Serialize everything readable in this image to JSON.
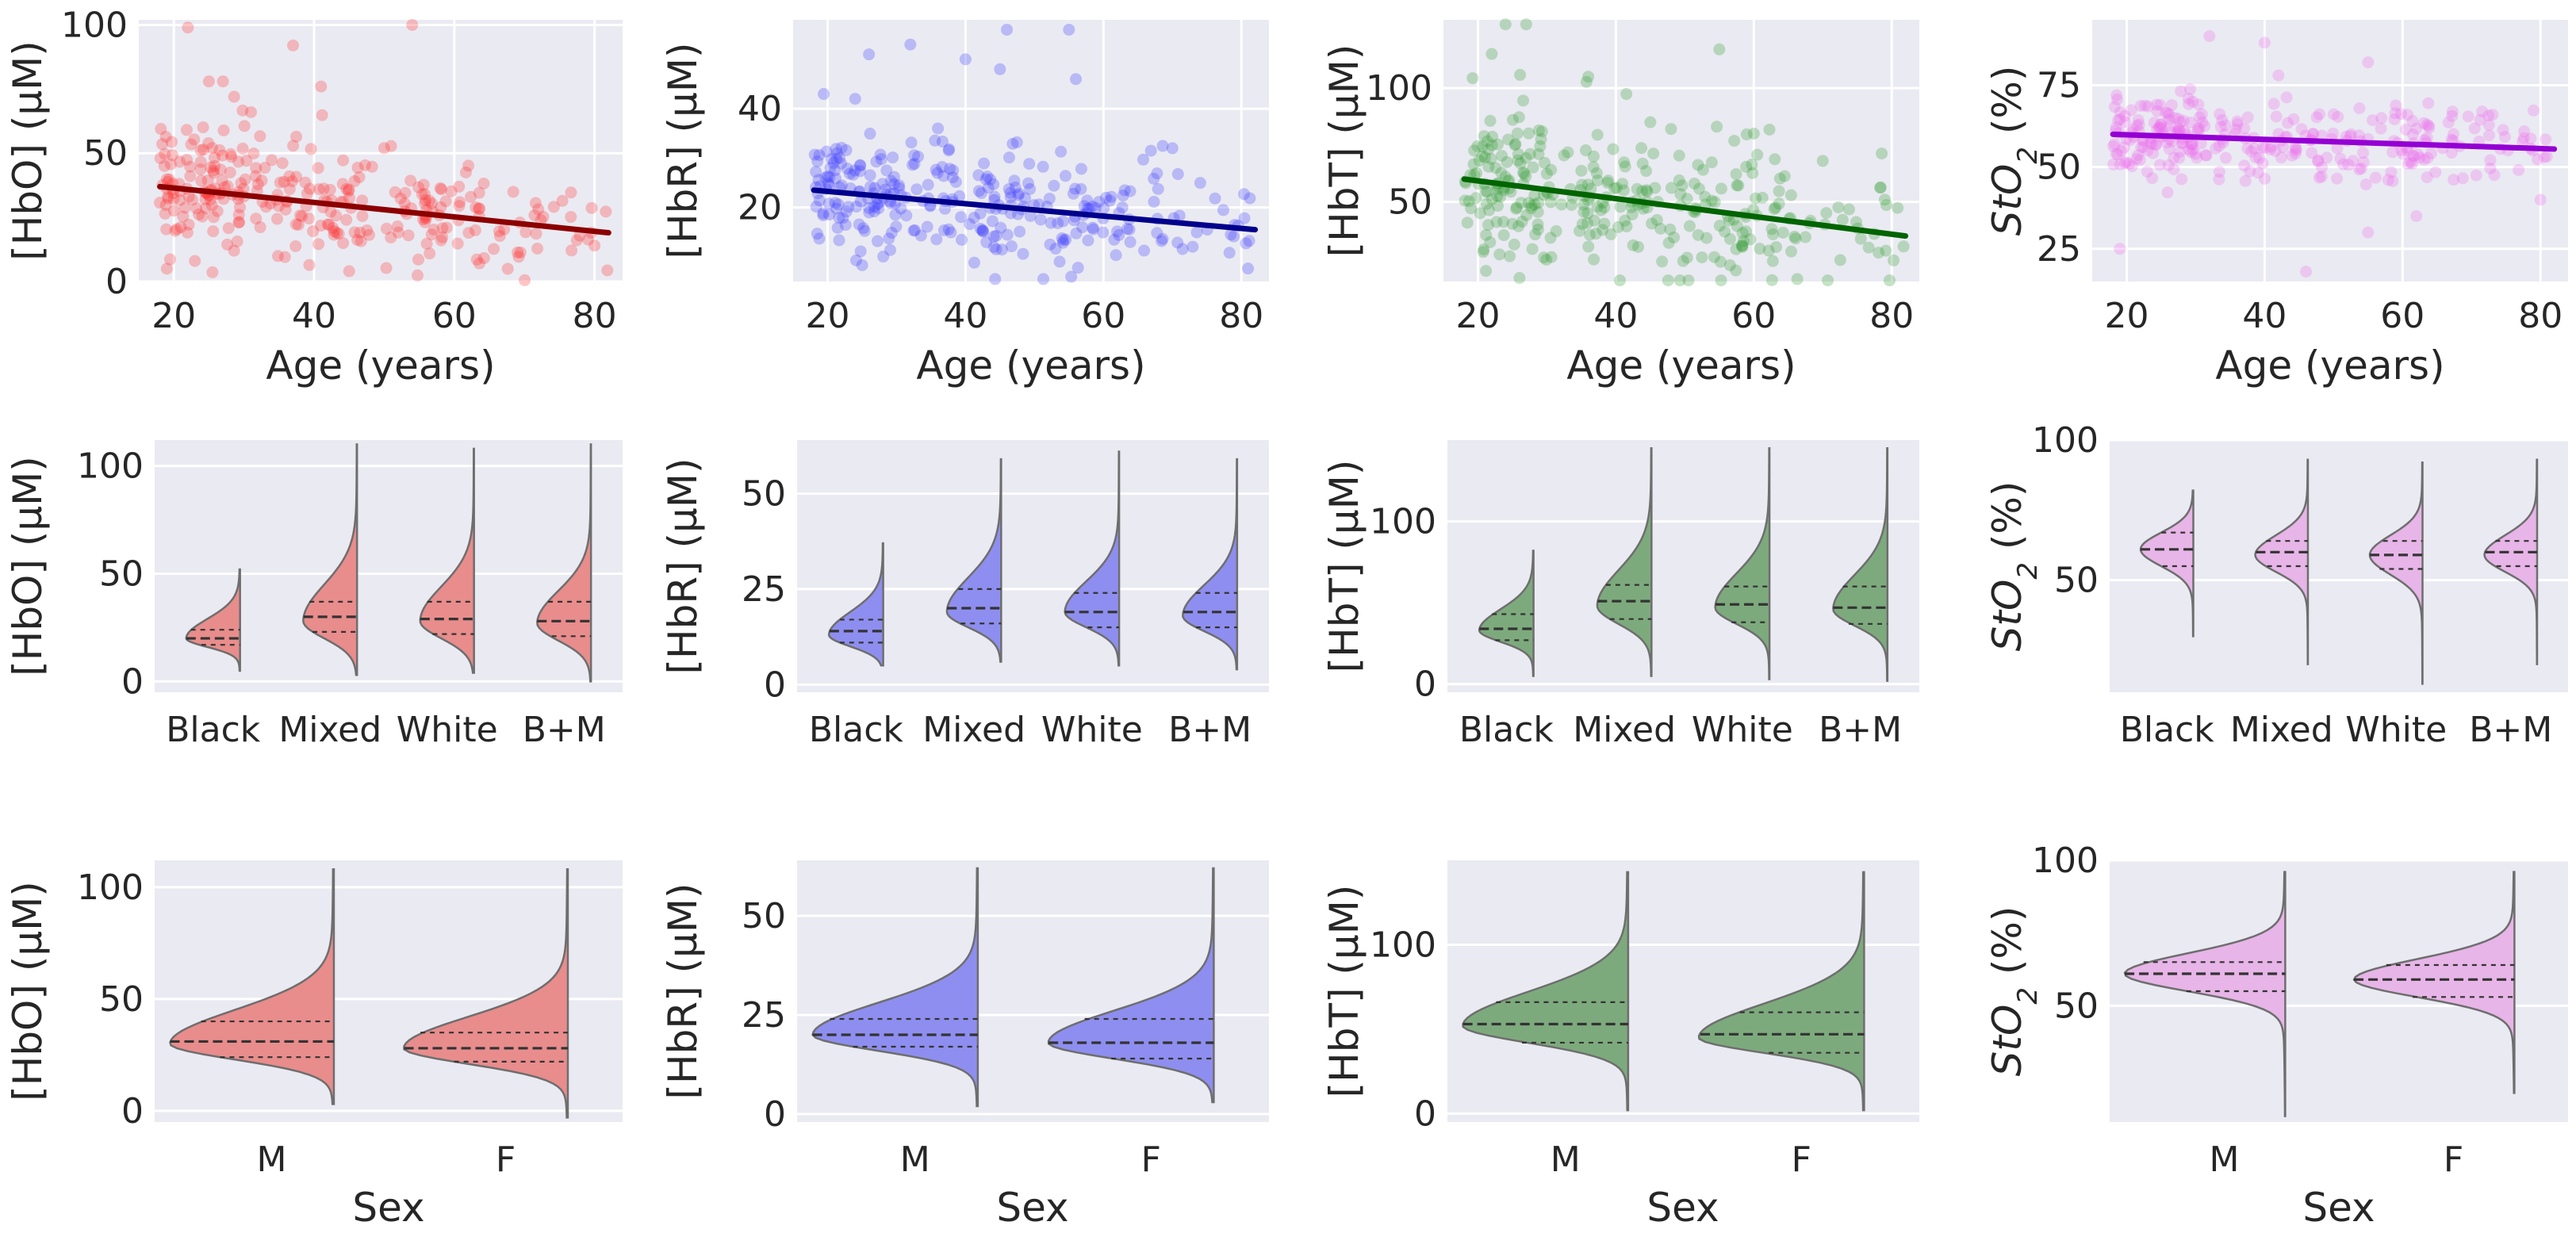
{
  "chart_data": [
    {
      "id": "hbo-age",
      "type": "scatter",
      "xlabel": "Age (years)",
      "ylabel": "[HbO] (μM)",
      "xlim": [
        15,
        84
      ],
      "ylim": [
        0,
        102
      ],
      "xticks": [
        20,
        40,
        60,
        80
      ],
      "yticks": [
        0,
        50,
        100
      ],
      "point_color": "#ff3030",
      "line_color": "#8b0000",
      "seed": 11,
      "n_points": 300,
      "spread": 11,
      "trend": {
        "x": [
          18,
          82
        ],
        "y": [
          37,
          19
        ]
      },
      "outliers": [
        [
          22,
          99
        ],
        [
          54,
          100
        ],
        [
          37,
          92
        ],
        [
          41,
          76
        ],
        [
          25,
          78
        ],
        [
          27,
          78
        ],
        [
          31,
          66
        ],
        [
          50,
          52
        ],
        [
          19,
          5
        ],
        [
          23,
          8
        ],
        [
          45,
          4
        ],
        [
          80,
          14
        ]
      ]
    },
    {
      "id": "hbr-age",
      "type": "scatter",
      "xlabel": "Age (years)",
      "ylabel": "[HbR] (μM)",
      "xlim": [
        15,
        84
      ],
      "ylim": [
        5,
        58
      ],
      "xticks": [
        20,
        40,
        60,
        80
      ],
      "yticks": [
        20,
        40
      ],
      "point_color": "#3a3aff",
      "line_color": "#00008b",
      "seed": 23,
      "n_points": 300,
      "spread": 6,
      "trend": {
        "x": [
          18,
          82
        ],
        "y": [
          23.5,
          15.5
        ]
      },
      "outliers": [
        [
          46,
          56
        ],
        [
          55,
          56
        ],
        [
          32,
          53
        ],
        [
          26,
          51
        ],
        [
          40,
          50
        ],
        [
          56,
          46
        ],
        [
          45,
          48
        ],
        [
          24,
          42
        ],
        [
          70,
          32
        ],
        [
          36,
          36
        ]
      ]
    },
    {
      "id": "hbt-age",
      "type": "scatter",
      "xlabel": "Age (years)",
      "ylabel": "[HbT] (μM)",
      "xlim": [
        15,
        84
      ],
      "ylim": [
        15,
        130
      ],
      "xticks": [
        20,
        40,
        60,
        80
      ],
      "yticks": [
        50,
        100
      ],
      "point_color": "#2e9a2e",
      "line_color": "#006400",
      "seed": 37,
      "n_points": 320,
      "spread": 16,
      "trend": {
        "x": [
          18,
          82
        ],
        "y": [
          60,
          35
        ]
      },
      "outliers": [
        [
          24,
          128
        ],
        [
          27,
          128
        ],
        [
          22,
          115
        ],
        [
          36,
          105
        ],
        [
          55,
          117
        ],
        [
          45,
          85
        ],
        [
          48,
          82
        ],
        [
          60,
          80
        ],
        [
          70,
          68
        ]
      ]
    },
    {
      "id": "sto2-age",
      "type": "scatter",
      "xlabel": "Age (years)",
      "ylabel": "StO2 (%)",
      "xlim": [
        15,
        84
      ],
      "ylim": [
        15,
        95
      ],
      "xticks": [
        20,
        40,
        60,
        80
      ],
      "yticks": [
        25,
        50,
        75
      ],
      "point_color": "#ee6aee",
      "line_color": "#9400d3",
      "seed": 53,
      "n_points": 300,
      "spread": 6,
      "trend": {
        "x": [
          18,
          82
        ],
        "y": [
          60,
          55.5
        ]
      },
      "outliers": [
        [
          32,
          90
        ],
        [
          40,
          88
        ],
        [
          42,
          78
        ],
        [
          55,
          82
        ],
        [
          19,
          25
        ],
        [
          46,
          18
        ],
        [
          55,
          30
        ],
        [
          62,
          35
        ],
        [
          80,
          40
        ]
      ]
    },
    {
      "id": "hbo-ethnicity",
      "type": "violin",
      "ylabel": "[HbO] (μM)",
      "ylim": [
        -5,
        112
      ],
      "yticks": [
        0,
        50,
        100
      ],
      "categories": [
        "Black",
        "Mixed",
        "White",
        "B+M"
      ],
      "fill": "#e98c8c",
      "violins": [
        {
          "min": 5,
          "max": 52,
          "mode": 20,
          "sd_low": 4,
          "sd_high": 9,
          "q1": 17,
          "median": 20,
          "q3": 24
        },
        {
          "min": 3,
          "max": 110,
          "mode": 28,
          "sd_low": 8,
          "sd_high": 17,
          "q1": 23,
          "median": 30,
          "q3": 37
        },
        {
          "min": 4,
          "max": 108,
          "mode": 28,
          "sd_low": 8,
          "sd_high": 16,
          "q1": 22,
          "median": 29,
          "q3": 37
        },
        {
          "min": 0,
          "max": 110,
          "mode": 27,
          "sd_low": 8,
          "sd_high": 15,
          "q1": 21,
          "median": 28,
          "q3": 37
        }
      ]
    },
    {
      "id": "hbr-ethnicity",
      "type": "violin",
      "ylabel": "[HbR] (μM)",
      "ylim": [
        -2,
        64
      ],
      "yticks": [
        0,
        25,
        50
      ],
      "categories": [
        "Black",
        "Mixed",
        "White",
        "B+M"
      ],
      "fill": "#8e8ef0",
      "violins": [
        {
          "min": 5,
          "max": 37,
          "mode": 13,
          "sd_low": 3,
          "sd_high": 6,
          "q1": 11,
          "median": 14,
          "q3": 17
        },
        {
          "min": 6,
          "max": 59,
          "mode": 19,
          "sd_low": 4,
          "sd_high": 9,
          "q1": 16,
          "median": 20,
          "q3": 25
        },
        {
          "min": 5,
          "max": 61,
          "mode": 19,
          "sd_low": 4,
          "sd_high": 8,
          "q1": 15,
          "median": 19,
          "q3": 24
        },
        {
          "min": 4,
          "max": 59,
          "mode": 18,
          "sd_low": 4,
          "sd_high": 8,
          "q1": 15,
          "median": 19,
          "q3": 24
        }
      ]
    },
    {
      "id": "hbt-ethnicity",
      "type": "violin",
      "ylabel": "[HbT] (μM)",
      "ylim": [
        -5,
        150
      ],
      "yticks": [
        0,
        100
      ],
      "categories": [
        "Black",
        "Mixed",
        "White",
        "B+M"
      ],
      "fill": "#7daa7d",
      "violins": [
        {
          "min": 5,
          "max": 82,
          "mode": 33,
          "sd_low": 7,
          "sd_high": 13,
          "q1": 27,
          "median": 34,
          "q3": 43
        },
        {
          "min": 5,
          "max": 145,
          "mode": 48,
          "sd_low": 11,
          "sd_high": 22,
          "q1": 40,
          "median": 51,
          "q3": 61
        },
        {
          "min": 3,
          "max": 145,
          "mode": 47,
          "sd_low": 10,
          "sd_high": 21,
          "q1": 38,
          "median": 49,
          "q3": 60
        },
        {
          "min": 2,
          "max": 145,
          "mode": 46,
          "sd_low": 10,
          "sd_high": 21,
          "q1": 37,
          "median": 47,
          "q3": 60
        }
      ]
    },
    {
      "id": "sto2-ethnicity",
      "type": "violin",
      "ylabel": "StO2 (%)",
      "ylim": [
        10,
        100
      ],
      "yticks": [
        50,
        100
      ],
      "categories": [
        "Black",
        "Mixed",
        "White",
        "B+M"
      ],
      "fill": "#e7b5e7",
      "violins": [
        {
          "min": 30,
          "max": 82,
          "mode": 61,
          "sd_low": 6,
          "sd_high": 6,
          "q1": 55,
          "median": 61,
          "q3": 67
        },
        {
          "min": 20,
          "max": 93,
          "mode": 59,
          "sd_low": 6,
          "sd_high": 7,
          "q1": 55,
          "median": 60,
          "q3": 64
        },
        {
          "min": 13,
          "max": 92,
          "mode": 59,
          "sd_low": 7,
          "sd_high": 7,
          "q1": 54,
          "median": 59,
          "q3": 64
        },
        {
          "min": 20,
          "max": 93,
          "mode": 59,
          "sd_low": 6,
          "sd_high": 7,
          "q1": 55,
          "median": 60,
          "q3": 64
        }
      ]
    },
    {
      "id": "hbo-sex",
      "type": "violin",
      "ylabel": "[HbO] (μM)",
      "xlabel": "Sex",
      "ylim": [
        -5,
        112
      ],
      "yticks": [
        0,
        50,
        100
      ],
      "categories": [
        "M",
        "F"
      ],
      "fill": "#e98c8c",
      "violins": [
        {
          "min": 3,
          "max": 108,
          "mode": 30,
          "sd_low": 7,
          "sd_high": 15,
          "q1": 24,
          "median": 31,
          "q3": 40
        },
        {
          "min": -3,
          "max": 108,
          "mode": 28,
          "sd_low": 7,
          "sd_high": 14,
          "q1": 22,
          "median": 28,
          "q3": 35
        }
      ]
    },
    {
      "id": "hbr-sex",
      "type": "violin",
      "ylabel": "[HbR] (μM)",
      "xlabel": "Sex",
      "ylim": [
        -2,
        64
      ],
      "yticks": [
        0,
        25,
        50
      ],
      "categories": [
        "M",
        "F"
      ],
      "fill": "#8e8ef0",
      "violins": [
        {
          "min": 2,
          "max": 62,
          "mode": 20,
          "sd_low": 4,
          "sd_high": 8,
          "q1": 17,
          "median": 20,
          "q3": 24
        },
        {
          "min": 3,
          "max": 62,
          "mode": 18,
          "sd_low": 4,
          "sd_high": 8,
          "q1": 14,
          "median": 18,
          "q3": 24
        }
      ]
    },
    {
      "id": "hbt-sex",
      "type": "violin",
      "ylabel": "[HbT] (μM)",
      "xlabel": "Sex",
      "ylim": [
        -5,
        150
      ],
      "yticks": [
        0,
        100
      ],
      "categories": [
        "M",
        "F"
      ],
      "fill": "#7daa7d",
      "violins": [
        {
          "min": 2,
          "max": 143,
          "mode": 52,
          "sd_low": 10,
          "sd_high": 20,
          "q1": 42,
          "median": 53,
          "q3": 66
        },
        {
          "min": 2,
          "max": 143,
          "mode": 45,
          "sd_low": 9,
          "sd_high": 20,
          "q1": 36,
          "median": 47,
          "q3": 60
        }
      ]
    },
    {
      "id": "sto2-sex",
      "type": "violin",
      "ylabel": "StO2 (%)",
      "xlabel": "Sex",
      "ylim": [
        10,
        100
      ],
      "yticks": [
        50,
        100
      ],
      "categories": [
        "M",
        "F"
      ],
      "fill": "#e7b5e7",
      "violins": [
        {
          "min": 12,
          "max": 96,
          "mode": 61,
          "sd_low": 6,
          "sd_high": 7,
          "q1": 55,
          "median": 61,
          "q3": 65
        },
        {
          "min": 20,
          "max": 96,
          "mode": 59,
          "sd_low": 6,
          "sd_high": 7,
          "q1": 53,
          "median": 59,
          "q3": 64
        }
      ]
    }
  ]
}
